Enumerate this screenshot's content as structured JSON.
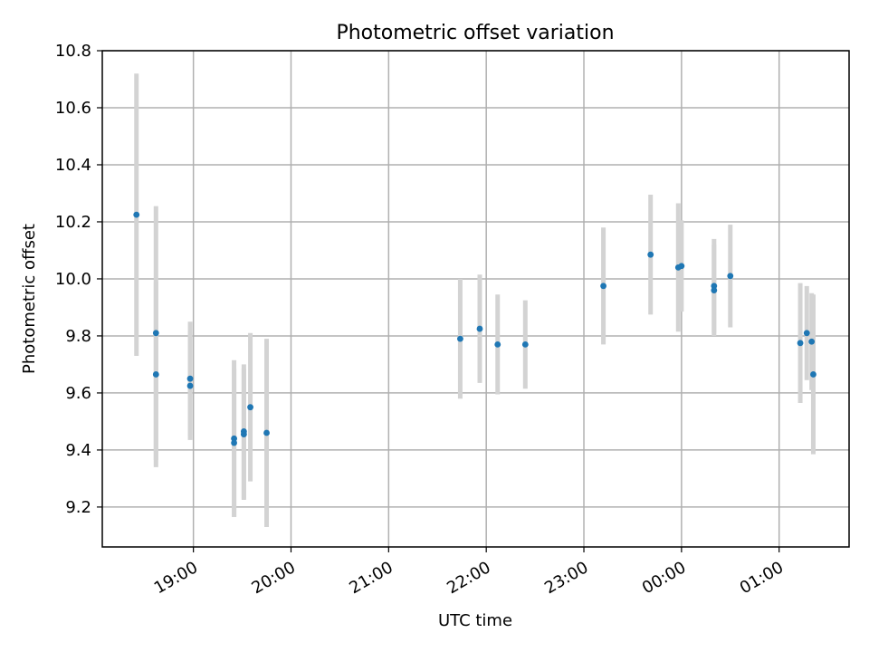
{
  "chart_data": {
    "type": "scatter",
    "title": "Photometric offset variation",
    "xlabel": "UTC time",
    "ylabel": "Photometric offset",
    "grid": true,
    "colors": {
      "points": "#1f77b4",
      "error_bars": "#d3d3d3",
      "grid": "#b0b0b0"
    },
    "xlim": [
      "18:04",
      "01:43"
    ],
    "ylim": [
      9.06,
      10.8
    ],
    "x_ticks": [
      "19:00",
      "20:00",
      "21:00",
      "22:00",
      "23:00",
      "00:00",
      "01:00"
    ],
    "y_ticks": [
      "9.2",
      "9.4",
      "9.6",
      "9.8",
      "10.0",
      "10.2",
      "10.4",
      "10.6",
      "10.8"
    ],
    "series": [
      {
        "points": [
          {
            "x": "18:25",
            "y": 10.225,
            "yerr": 0.495
          },
          {
            "x": "18:37",
            "y": 9.81,
            "yerr": 0.445
          },
          {
            "x": "18:37",
            "y": 9.665,
            "yerr": 0.325
          },
          {
            "x": "18:58",
            "y": 9.65,
            "yerr": 0.2
          },
          {
            "x": "18:58",
            "y": 9.625,
            "yerr": 0.19
          },
          {
            "x": "19:25",
            "y": 9.44,
            "yerr": 0.275
          },
          {
            "x": "19:25",
            "y": 9.425,
            "yerr": 0.26
          },
          {
            "x": "19:31",
            "y": 9.465,
            "yerr": 0.235
          },
          {
            "x": "19:31",
            "y": 9.455,
            "yerr": 0.23
          },
          {
            "x": "19:35",
            "y": 9.55,
            "yerr": 0.26
          },
          {
            "x": "19:45",
            "y": 9.46,
            "yerr": 0.33
          },
          {
            "x": "21:44",
            "y": 9.79,
            "yerr": 0.21
          },
          {
            "x": "21:56",
            "y": 9.825,
            "yerr": 0.19
          },
          {
            "x": "22:07",
            "y": 9.77,
            "yerr": 0.175
          },
          {
            "x": "22:24",
            "y": 9.77,
            "yerr": 0.155
          },
          {
            "x": "23:12",
            "y": 9.975,
            "yerr": 0.205
          },
          {
            "x": "23:41",
            "y": 10.085,
            "yerr": 0.21
          },
          {
            "x": "23:58",
            "y": 10.04,
            "yerr": 0.225
          },
          {
            "x": "00:00",
            "y": 10.045,
            "yerr": 0.16
          },
          {
            "x": "00:20",
            "y": 9.975,
            "yerr": 0.165
          },
          {
            "x": "00:20",
            "y": 9.96,
            "yerr": 0.16
          },
          {
            "x": "00:30",
            "y": 10.01,
            "yerr": 0.18
          },
          {
            "x": "01:13",
            "y": 9.775,
            "yerr": 0.21
          },
          {
            "x": "01:17",
            "y": 9.81,
            "yerr": 0.165
          },
          {
            "x": "01:20",
            "y": 9.78,
            "yerr": 0.17
          },
          {
            "x": "01:21",
            "y": 9.665,
            "yerr": 0.28
          }
        ]
      }
    ]
  }
}
